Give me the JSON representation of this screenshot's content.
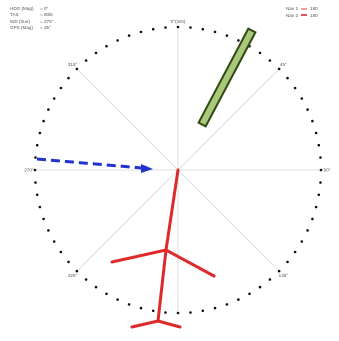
{
  "readout": [
    {
      "label": "HDG (Mag)",
      "sep": "=",
      "value": "0°"
    },
    {
      "label": "TAS",
      "sep": "=",
      "value": "80kt"
    },
    {
      "label": "WD (true)",
      "sep": "=",
      "value": "275°"
    },
    {
      "label": "GPS (Mag)",
      "sep": "=",
      "value": "35°"
    }
  ],
  "legend": [
    {
      "label": "Nav 1",
      "color": "#e8a0a0",
      "value": "180"
    },
    {
      "label": "Nav 2",
      "color": "#e85050",
      "value": "180"
    }
  ],
  "compass": {
    "north_label": "0°(mN)",
    "ring_labels": [
      {
        "text": "45°",
        "angle": 45
      },
      {
        "text": "90°",
        "angle": 90
      },
      {
        "text": "135°",
        "angle": 135
      },
      {
        "text": "225°",
        "angle": 225
      },
      {
        "text": "270°",
        "angle": 270
      },
      {
        "text": "315°",
        "angle": 315
      }
    ]
  },
  "colors": {
    "green_bar_fill": "#a8c87a",
    "green_bar_stroke": "#2f4a10",
    "wind_arrow": "#2233cc",
    "red_track": "#dd2a2a",
    "spokes": "#d8d8d8",
    "dots": "#111111"
  }
}
